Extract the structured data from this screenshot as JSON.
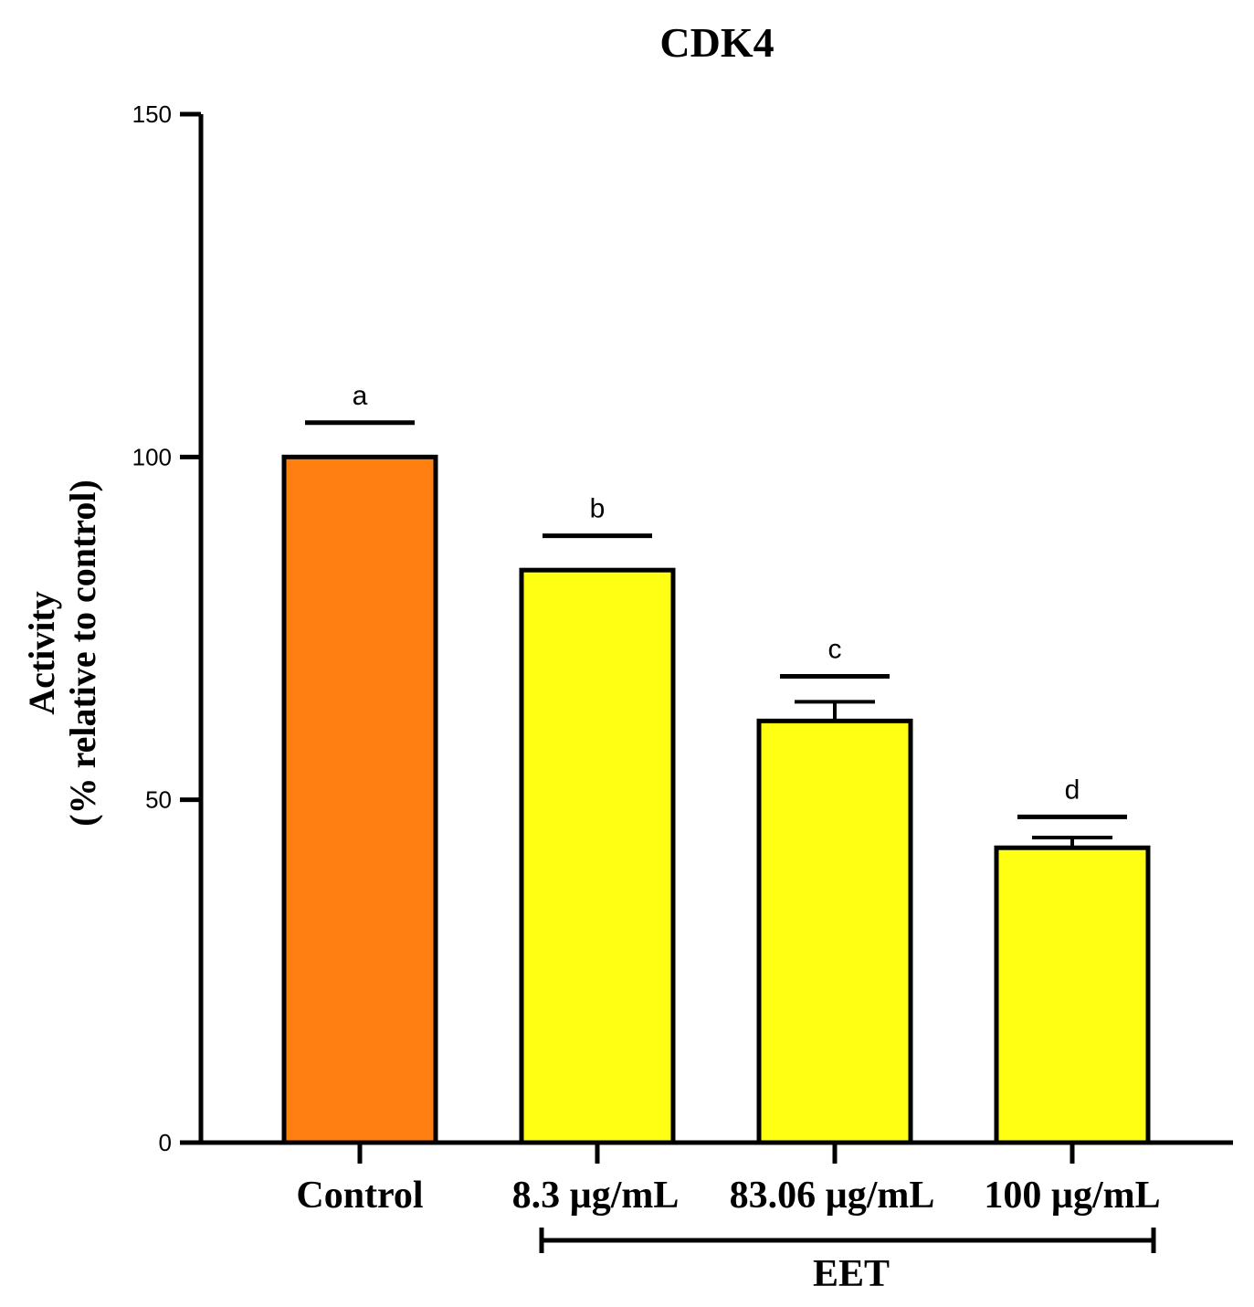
{
  "chart_data": {
    "type": "bar",
    "title": "CDK4",
    "ylabel_line1": "Activity",
    "ylabel_line2": "(% relative to control)",
    "xlabel": "",
    "ylim": [
      0,
      150
    ],
    "yticks": [
      0,
      50,
      100,
      150
    ],
    "grid": false,
    "categories": [
      "Control",
      "8.3 µg/mL",
      "83.06 µg/mL",
      "100 µg/mL"
    ],
    "values": [
      100,
      83.5,
      61.5,
      43
    ],
    "errors": [
      0,
      0,
      2.8,
      1.5
    ],
    "significance": [
      "a",
      "b",
      "c",
      "d"
    ],
    "significance_level": [
      105,
      88.5,
      68,
      47.5
    ],
    "colors": [
      "#FF8010",
      "#FFFF14",
      "#FFFF14",
      "#FFFF14"
    ],
    "group_bracket": {
      "label": "EET",
      "spans": [
        "8.3 µg/mL",
        "100 µg/mL"
      ]
    }
  }
}
